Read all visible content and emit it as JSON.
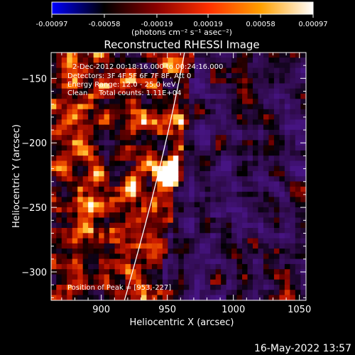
{
  "colorbar": {
    "ticks": [
      "-0.00097",
      "-0.00058",
      "-0.00019",
      "0.00019",
      "0.00058",
      "0.00097"
    ],
    "tick_values": [
      -0.00097,
      -0.00058,
      -0.00019,
      0.00019,
      0.00058,
      0.00097
    ],
    "unit": "(photons cm⁻² s⁻¹ asec⁻²)",
    "colors": [
      "#0000ff",
      "#000000",
      "#8a0000",
      "#ff3000",
      "#ffa000",
      "#ffffff"
    ]
  },
  "chart_data": {
    "type": "heatmap",
    "title": "Reconstructed RHESSI Image",
    "xlabel": "Heliocentric X (arcsec)",
    "ylabel": "Heliocentric Y (arcsec)",
    "xlim": [
      862,
      1055
    ],
    "ylim": [
      -322,
      -130
    ],
    "xticks": [
      900,
      950,
      1000,
      1050
    ],
    "xtick_labels": [
      "900",
      "950",
      "1000",
      "1050"
    ],
    "yticks": [
      -150,
      -200,
      -250,
      -300
    ],
    "ytick_labels": [
      "−150",
      "−200",
      "−250",
      "−300"
    ],
    "peak": [
      953,
      -227
    ],
    "annotations": [
      "2-Dec-2012 00:18:16.000 to 00:24:16.000",
      "Detectors: 3F 4F 5F 6F 7F 8F, Att 0",
      "Energy Range: 12.0 - 25.0 keV",
      "Clean     Total counts: 1.11E+04"
    ],
    "peak_label": "Position of Peak = [953,-227]"
  },
  "timestamp": "16-May-2022 13:57"
}
